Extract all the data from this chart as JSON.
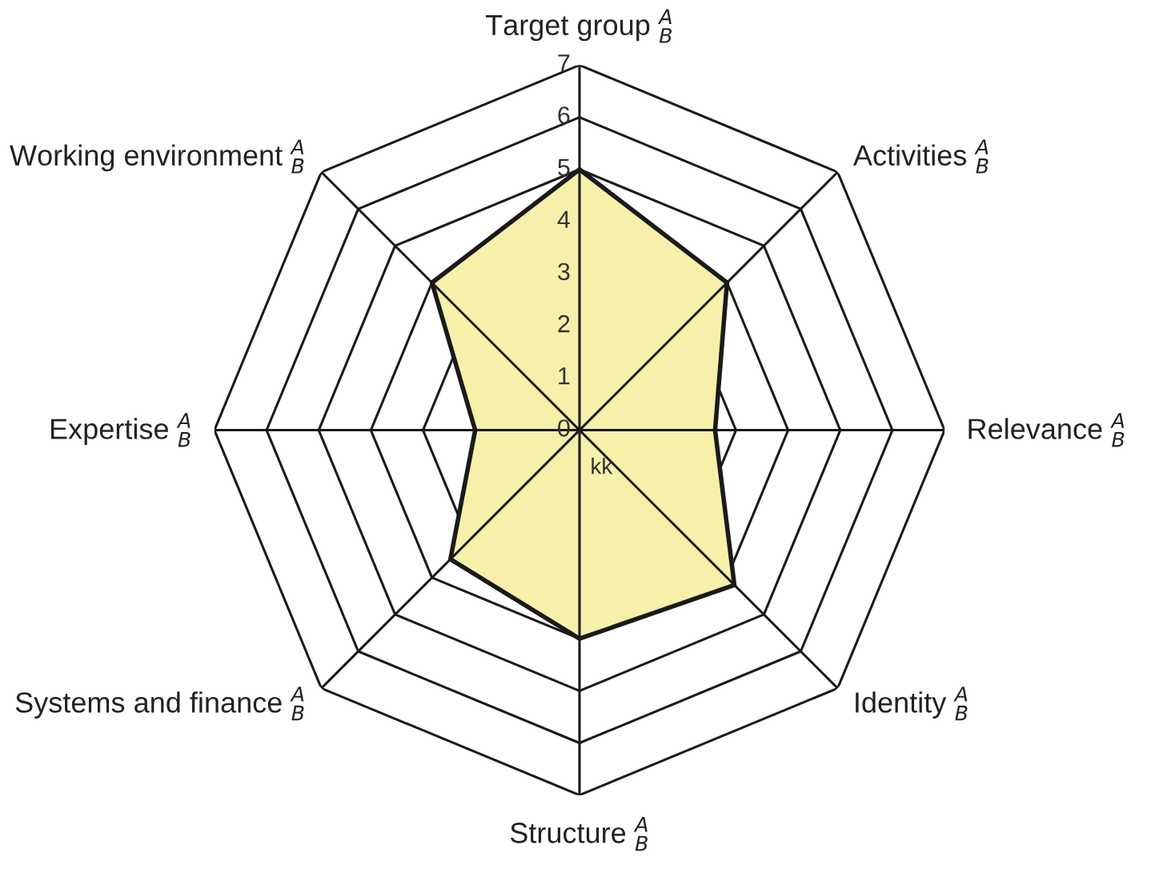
{
  "chart_data": {
    "type": "radar",
    "categories": [
      "Target group $^{A}$$_{B}$",
      "Activities $^{A}$$_{B}$",
      "Relevance $^{A}$$_{B}$",
      "Identity $^{A}$$_{B}$",
      "Structure $^{A}$$_{B}$",
      "Systems and finance $^{A}$$_{B}$",
      "Expertise $^{A}$$_{B}$",
      "Working environment $^{A}$$_{B}$"
    ],
    "series": [
      {
        "color": "#f7f0aa",
        "values": [
          5,
          4,
          2.6,
          4.2,
          4,
          3.5,
          2,
          4
        ]
      }
    ],
    "ylim": [
      0,
      7
    ],
    "yticks": [
      0,
      1,
      2,
      3,
      4,
      5,
      6,
      7
    ],
    "grid": true,
    "annotations": [
      "kk"
    ]
  }
}
